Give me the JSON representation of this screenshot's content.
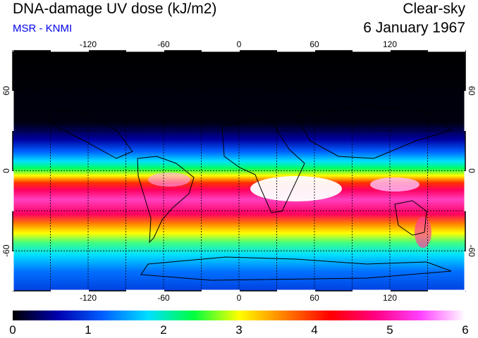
{
  "header": {
    "title": "DNA-damage UV dose (kJ/m2)",
    "credit": "MSR - KNMI",
    "mode": "Clear-sky",
    "date": "6 January 1967"
  },
  "map": {
    "projection": "equirectangular",
    "lon_range": [
      -180,
      180
    ],
    "lat_range": [
      -90,
      90
    ],
    "lon_ticks": [
      "-120",
      "-60",
      "0",
      "60",
      "120"
    ],
    "lat_ticks": [
      "60",
      "0",
      "-60"
    ],
    "gridlines": "dotted",
    "coastlines": true
  },
  "colorbar": {
    "labels": [
      "0",
      "1",
      "2",
      "3",
      "4",
      "5",
      "6"
    ],
    "range": [
      0,
      6
    ],
    "colors": [
      "#000000",
      "#0000b0",
      "#0060ff",
      "#00e0ff",
      "#00ff40",
      "#ffff00",
      "#ff8000",
      "#ff0000",
      "#ff0080",
      "#ff40ff",
      "#ffffff"
    ]
  }
}
